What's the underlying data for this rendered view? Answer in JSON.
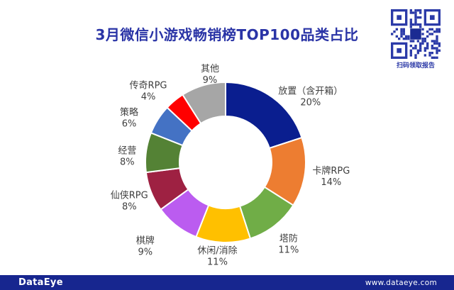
{
  "title": "3月微信小游戏畅销榜TOP100品类占比",
  "qr": {
    "icon": "qr-code-icon",
    "caption": "扫码领取报告"
  },
  "footer": {
    "brand": "DataEye",
    "url": "www.dataeye.com",
    "bar_color": "#17268F"
  },
  "colors": {
    "title_text": "#2A34A6",
    "label_text": "#3F3F3F",
    "qr_blue": "#2B3AA8"
  },
  "chart_data": {
    "type": "pie",
    "subtype": "donut",
    "title": "3月微信小游戏畅销榜TOP100品类占比",
    "start_angle_deg": 0,
    "direction": "clockwise",
    "value_suffix": "%",
    "legend_position": "none",
    "segments": [
      {
        "label": "放置（含开箱）",
        "value": 20,
        "color": "#0A1E8F"
      },
      {
        "label": "卡牌RPG",
        "value": 14,
        "color": "#ED7D31"
      },
      {
        "label": "塔防",
        "value": 11,
        "color": "#70AD47"
      },
      {
        "label": "休闲/消除",
        "value": 11,
        "color": "#FFC000"
      },
      {
        "label": "棋牌",
        "value": 9,
        "color": "#BB5CF0"
      },
      {
        "label": "仙侠RPG",
        "value": 8,
        "color": "#9E2142"
      },
      {
        "label": "经营",
        "value": 8,
        "color": "#548235"
      },
      {
        "label": "策略",
        "value": 6,
        "color": "#4472C4"
      },
      {
        "label": "传奇RPG",
        "value": 4,
        "color": "#FF0000"
      },
      {
        "label": "其他",
        "value": 9,
        "color": "#A6A6A6"
      }
    ]
  }
}
